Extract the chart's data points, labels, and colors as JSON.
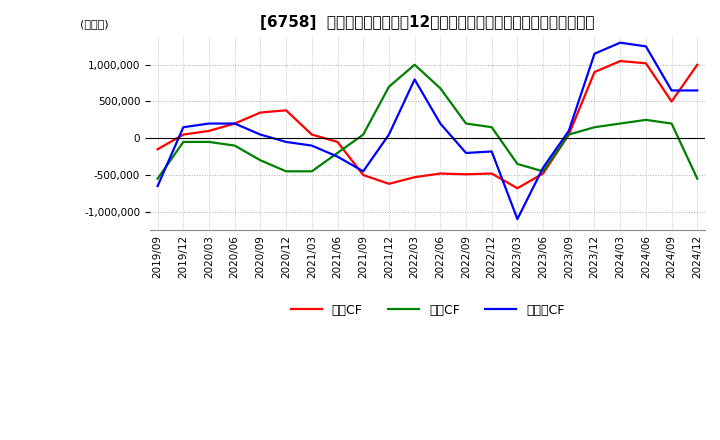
{
  "title": "[6758]  キャッシュフローの12か月移動合計の対前年同期増減額の推移",
  "ylabel": "(百万円)",
  "ylim": [
    -1250000,
    1400000
  ],
  "yticks": [
    -1000000,
    -500000,
    0,
    500000,
    1000000
  ],
  "legend_labels": [
    "営業CF",
    "投資CF",
    "フリーCF"
  ],
  "line_colors": [
    "#ff0000",
    "#008000",
    "#0000ff"
  ],
  "x_labels": [
    "2019/09",
    "2019/12",
    "2020/03",
    "2020/06",
    "2020/09",
    "2020/12",
    "2021/03",
    "2021/06",
    "2021/09",
    "2021/12",
    "2022/03",
    "2022/06",
    "2022/09",
    "2022/12",
    "2023/03",
    "2023/06",
    "2023/09",
    "2023/12",
    "2024/03",
    "2024/06",
    "2024/09",
    "2024/12"
  ],
  "series": {
    "営業CF": [
      -150000,
      50000,
      100000,
      200000,
      350000,
      380000,
      50000,
      -50000,
      -500000,
      -620000,
      -530000,
      -480000,
      -490000,
      -480000,
      -680000,
      -480000,
      50000,
      900000,
      1050000,
      1020000,
      500000,
      1000000
    ],
    "投資CF": [
      -550000,
      -50000,
      -50000,
      -100000,
      -300000,
      -450000,
      -450000,
      -200000,
      50000,
      700000,
      1000000,
      680000,
      200000,
      150000,
      -350000,
      -450000,
      50000,
      150000,
      200000,
      250000,
      200000,
      -550000
    ],
    "フリーCF": [
      -650000,
      150000,
      200000,
      200000,
      50000,
      -50000,
      -100000,
      -250000,
      -450000,
      50000,
      800000,
      200000,
      -200000,
      -180000,
      -1100000,
      -400000,
      100000,
      1150000,
      1300000,
      1250000,
      650000,
      650000
    ]
  },
  "background_color": "#ffffff",
  "grid_color": "#aaaaaa",
  "title_fontsize": 11,
  "label_fontsize": 8,
  "tick_fontsize": 7.5,
  "line_width": 1.6
}
